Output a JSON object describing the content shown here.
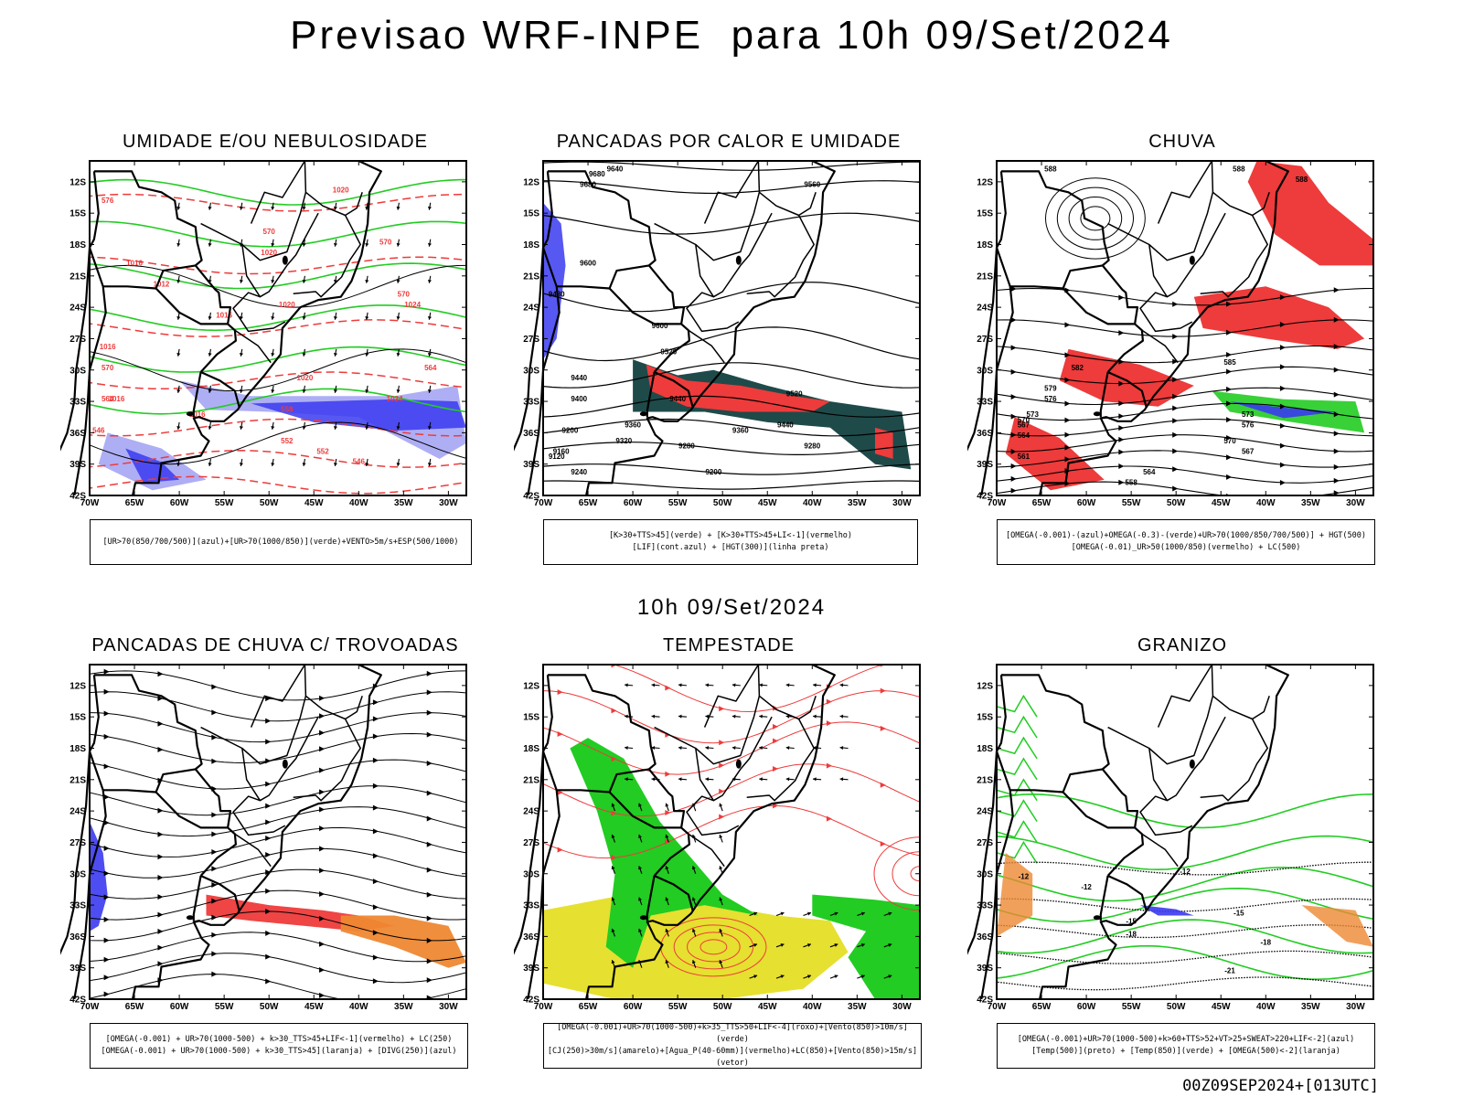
{
  "main_title": "Previsao WRF-INPE  para 10h 09/Set/2024",
  "mid_title": "10h 09/Set/2024",
  "footer": "00Z09SEP2024+[013UTC]",
  "axes": {
    "lat_ticks": [
      "12S",
      "15S",
      "18S",
      "21S",
      "24S",
      "27S",
      "30S",
      "33S",
      "36S",
      "39S",
      "42S"
    ],
    "lon_ticks": [
      "70W",
      "65W",
      "60W",
      "55W",
      "50W",
      "45W",
      "40W",
      "35W",
      "30W"
    ]
  },
  "colors": {
    "blue": "#3a3af0",
    "light_blue": "#9a9af2",
    "green": "#22cc22",
    "red": "#ee3b3b",
    "dark_teal": "#1f4a4a",
    "yellow": "#e6e030",
    "orange": "#ee8833",
    "black": "#000000"
  },
  "panels": [
    {
      "id": "umidade",
      "title": "UMIDADE E/OU NEBULOSIDADE",
      "legend": [
        "[UR>70(850/700/500)](azul)+[UR>70(1000/850)](verde)+VENTO>5m/s+ESP(500/1000)"
      ],
      "contour_labels": [
        "1020",
        "1016",
        "1012",
        "1016",
        "1020",
        "1020",
        "1020",
        "1024",
        "1024",
        "1016",
        "1016",
        "1016",
        "576",
        "570",
        "570",
        "570",
        "570",
        "564",
        "564",
        "558",
        "552",
        "552",
        "546",
        "546"
      ]
    },
    {
      "id": "calor",
      "title": "PANCADAS POR CALOR E UMIDADE",
      "legend": [
        "[K>30+TTS>45](verde) + [K>30+TTS>45+LI<-1](vermelho)",
        "[LIF](cont.azul) + [HGT(300)](linha preta)"
      ],
      "contour_labels": [
        "9680",
        "9680",
        "9640",
        "9600",
        "9600",
        "9560",
        "9520",
        "9520",
        "9480",
        "9440",
        "9440",
        "9440",
        "9400",
        "9360",
        "9360",
        "9320",
        "9280",
        "9280",
        "9240",
        "9200",
        "9200",
        "9160",
        "9120"
      ]
    },
    {
      "id": "chuva",
      "title": "CHUVA",
      "legend": [
        "[OMEGA(-0.001)-(azul)+OMEGA(-0.3)-(verde)+UR>70(1000/850/700/500)] + HGT(500)",
        "[OMEGA(-0.01)_UR>50(1000/850)(vermelho) + LC(500)"
      ],
      "contour_labels": [
        "588",
        "588",
        "588",
        "585",
        "582",
        "579",
        "576",
        "576",
        "573",
        "573",
        "570",
        "570",
        "567",
        "567",
        "564",
        "564",
        "561",
        "558"
      ]
    },
    {
      "id": "trovoadas",
      "title": "PANCADAS DE CHUVA C/ TROVOADAS",
      "legend": [
        "[OMEGA(-0.001) + UR>70(1000-500) + k>30_TTS>45+LIF<-1](vermelho) + LC(250)",
        "[OMEGA(-0.001) + UR>70(1000-500) + k>30_TTS>45](laranja) + [DIVG(250)](azul)"
      ],
      "contour_labels": []
    },
    {
      "id": "tempestade",
      "title": "TEMPESTADE",
      "legend": [
        "[OMEGA(-0.001)+UR>70(1000-500)+k>35_TTS>50+LIF<-4](roxo)+[Vento(850)>10m/s](verde)",
        "[CJ(250)>30m/s](amarelo)+[Agua_P(40-60mm)](vermelho)+LC(850)+[Vento(850)>15m/s](vetor)"
      ],
      "contour_labels": []
    },
    {
      "id": "granizo",
      "title": "GRANIZO",
      "legend": [
        "[OMEGA(-0.001)+UR>70(1000-500)+k>60+TTS>52+VT>25+SWEAT>220+LIF<-2](azul)",
        "[Temp(500)](preto) + [Temp(850)](verde) + [OMEGA(500)<-2](laranja)"
      ],
      "contour_labels": [
        "-12",
        "-12",
        "-12",
        "-15",
        "-15",
        "-18",
        "-18",
        "-21"
      ]
    }
  ]
}
